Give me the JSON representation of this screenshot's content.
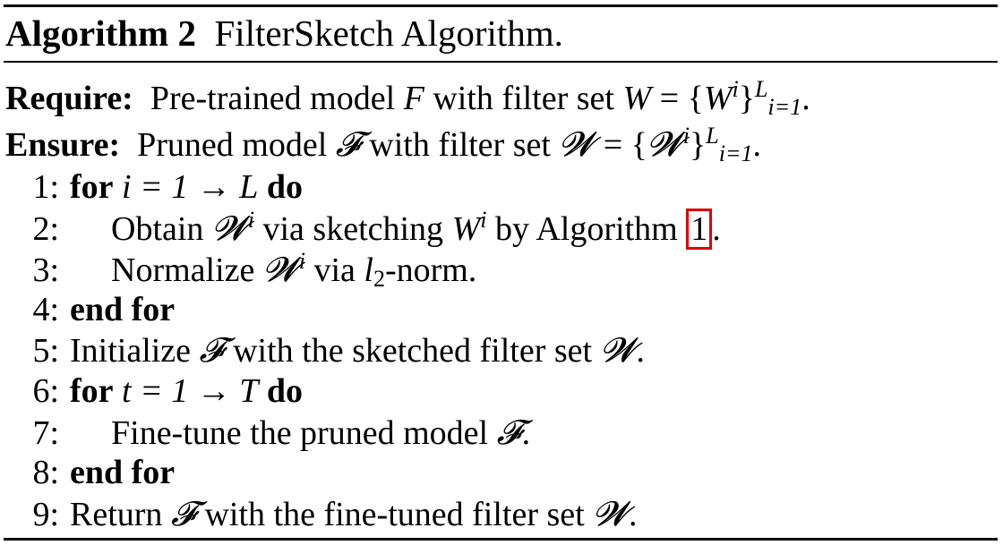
{
  "caption": {
    "label": "Algorithm 2",
    "title": "FilterSketch Algorithm."
  },
  "require": {
    "label": "Require:",
    "text_before": "Pre-trained model",
    "model": "F",
    "text_mid": "with filter set",
    "set_lhs": "W",
    "eq_open": "= {",
    "set_elem": "W",
    "sup_i": "i",
    "close": "}",
    "sup_L": "L",
    "sub_range": "i=1",
    "end": "."
  },
  "ensure": {
    "label": "Ensure:",
    "text_before": "Pruned model",
    "model": "𝓕",
    "text_mid": "with filter set",
    "set_lhs": "𝓦",
    "eq_open": "= {",
    "set_elem": "𝓦",
    "sup_i": "i",
    "close": "}",
    "sup_L": "L",
    "sub_range": "i=1",
    "end": "."
  },
  "steps": [
    {
      "num": "1:",
      "kw1": "for",
      "expr": "i = 1 → L",
      "kw2": "do"
    },
    {
      "num": "2:",
      "t1": "Obtain",
      "w_cal": "𝓦",
      "sup1": "i",
      "t2": "via sketching",
      "w": "W",
      "sup2": "i",
      "t3": "by Algorithm",
      "ref": "1",
      "t4": "."
    },
    {
      "num": "3:",
      "t1": "Normalize",
      "w_cal": "𝓦",
      "sup1": "i",
      "t2": "via",
      "l": "l",
      "sub": "2",
      "t3": "-norm."
    },
    {
      "num": "4:",
      "kw1": "end for"
    },
    {
      "num": "5:",
      "t1": "Initialize",
      "f_cal": "𝓕",
      "t2": "with the sketched filter set",
      "w_cal": "𝓦",
      "t3": "."
    },
    {
      "num": "6:",
      "kw1": "for",
      "expr": "t = 1 → T",
      "kw2": "do"
    },
    {
      "num": "7:",
      "t1": "Fine-tune the pruned model",
      "f_cal": "𝓕",
      "t2": "."
    },
    {
      "num": "8:",
      "kw1": "end for"
    },
    {
      "num": "9:",
      "t1": "Return",
      "f_cal": "𝓕",
      "t2": "with the fine-tuned filter set",
      "w_cal": "𝓦",
      "t3": "."
    }
  ]
}
